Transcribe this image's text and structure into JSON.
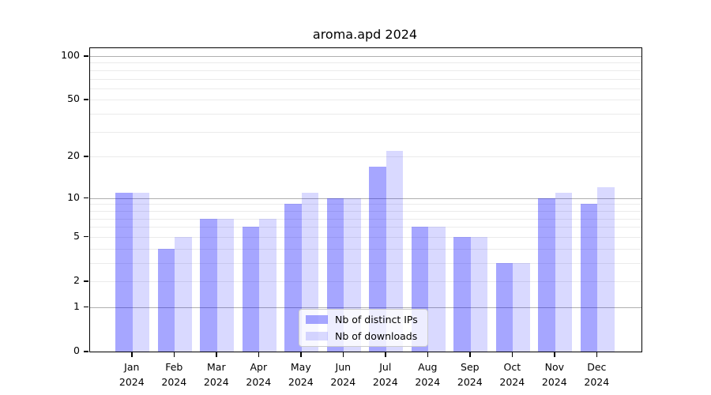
{
  "window": {
    "title": "aroma.apd 2024"
  },
  "chart_data": {
    "type": "bar",
    "title": "aroma.apd 2024",
    "categories": [
      "Jan 2024",
      "Feb 2024",
      "Mar 2024",
      "Apr 2024",
      "May 2024",
      "Jun 2024",
      "Jul 2024",
      "Aug 2024",
      "Sep 2024",
      "Oct 2024",
      "Nov 2024",
      "Dec 2024"
    ],
    "month_labels": [
      "Jan",
      "Feb",
      "Mar",
      "Apr",
      "May",
      "Jun",
      "Jul",
      "Aug",
      "Sep",
      "Oct",
      "Nov",
      "Dec"
    ],
    "year_label": "2024",
    "series": [
      {
        "name": "Nb of distinct IPs",
        "color": "rgba(0,0,255,0.35)",
        "values": [
          11,
          4,
          7,
          6,
          9,
          10,
          17,
          6,
          5,
          3,
          10,
          9
        ]
      },
      {
        "name": "Nb of downloads",
        "color": "rgba(0,0,255,0.15)",
        "values": [
          11,
          5,
          7,
          7,
          11,
          10,
          22,
          6,
          5,
          3,
          11,
          12
        ]
      }
    ],
    "xlabel": "",
    "ylabel": "",
    "y_scale": "log10(value+1)",
    "y_tick_values": [
      100,
      50,
      20,
      10,
      5,
      2,
      1,
      0
    ],
    "y_major_gridlines": [
      1,
      10,
      100
    ],
    "y_minor_gridlines": [
      2,
      3,
      4,
      5,
      6,
      7,
      8,
      9,
      20,
      30,
      40,
      50,
      60,
      70,
      80,
      90
    ],
    "ylim": [
      0,
      114
    ],
    "grid": true,
    "legend_position": "bottom-center",
    "colors": {
      "bar_dark": "rgba(0,0,255,0.35)",
      "bar_light": "rgba(0,0,255,0.15)",
      "gridline_minor": "#ebebeb",
      "gridline_major": "#b0b0b0",
      "axis": "#000000",
      "background": "#ffffff"
    }
  }
}
